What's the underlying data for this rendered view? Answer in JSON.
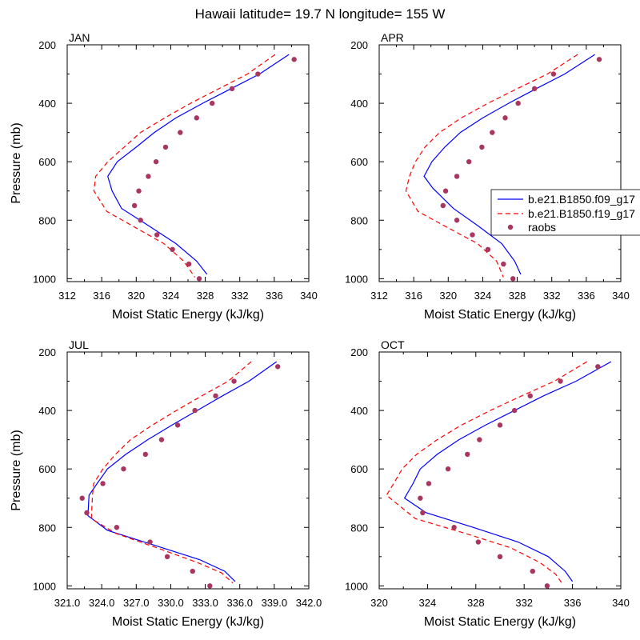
{
  "figure_title": "Hawaii  latitude= 19.7 N longitude= 155 W",
  "legend": {
    "entries": [
      {
        "label": "b.e21.B1850.f09_g17",
        "style": "solid",
        "color": "#0000ff"
      },
      {
        "label": "b.e21.B1850.f19_g17",
        "style": "dashed",
        "color": "#ff0000"
      },
      {
        "label": "raobs",
        "style": "marker",
        "color": "#a93661"
      }
    ]
  },
  "colors": {
    "f09": "#0000ff",
    "f19": "#ff0000",
    "raobs": "#a93661"
  },
  "chart_data": [
    {
      "type": "line",
      "panel": "JAN",
      "xlabel": "Moist Static Energy (kJ/kg)",
      "ylabel": "Pressure (mb)",
      "xlim": [
        312,
        340
      ],
      "ylim": [
        200,
        1010
      ],
      "y_inverted": true,
      "xticks": [
        312,
        316,
        320,
        324,
        328,
        332,
        336,
        340
      ],
      "xtick_labels": [
        "312",
        "316",
        "320",
        "324",
        "328",
        "332",
        "336",
        "340"
      ],
      "yticks": [
        200,
        400,
        600,
        800,
        1000
      ],
      "ytick_labels": [
        "200",
        "400",
        "600",
        "800",
        "1000"
      ],
      "series": [
        {
          "name": "b.e21.B1850.f09_g17",
          "key": "f09",
          "x": [
            337.7,
            334.3,
            331.0,
            327.7,
            324.6,
            322.1,
            320.0,
            317.8,
            316.7,
            317.2,
            318.3,
            321.5,
            324.6,
            327.0,
            328.2
          ],
          "y": [
            233,
            300,
            350,
            400,
            450,
            500,
            550,
            600,
            650,
            700,
            760,
            820,
            880,
            940,
            985
          ]
        },
        {
          "name": "b.e21.B1850.f19_g17",
          "key": "f19",
          "x": [
            336.1,
            332.9,
            329.6,
            326.3,
            323.3,
            320.5,
            318.6,
            316.7,
            315.3,
            315.1,
            316.6,
            319.6,
            323.2,
            325.5,
            326.8
          ],
          "y": [
            233,
            300,
            350,
            400,
            450,
            500,
            550,
            600,
            650,
            700,
            770,
            820,
            880,
            940,
            995
          ]
        },
        {
          "name": "raobs",
          "key": "raobs",
          "x": [
            338.3,
            334.1,
            331.1,
            328.8,
            327.0,
            325.1,
            323.4,
            322.3,
            321.4,
            320.3,
            319.8,
            320.5,
            322.4,
            324.2,
            326.1,
            327.3
          ],
          "y": [
            250,
            300,
            350,
            400,
            450,
            500,
            550,
            600,
            650,
            700,
            750,
            800,
            850,
            900,
            950,
            1000
          ]
        }
      ]
    },
    {
      "type": "line",
      "panel": "APR",
      "xlabel": "Moist Static Energy (kJ/kg)",
      "ylabel": "",
      "xlim": [
        312,
        340
      ],
      "ylim": [
        200,
        1010
      ],
      "y_inverted": true,
      "xticks": [
        312,
        316,
        320,
        324,
        328,
        332,
        336,
        340
      ],
      "xtick_labels": [
        "312",
        "316",
        "320",
        "324",
        "328",
        "332",
        "336",
        "340"
      ],
      "yticks": [
        200,
        400,
        600,
        800,
        1000
      ],
      "ytick_labels": [
        "200",
        "400",
        "600",
        "800",
        "1000"
      ],
      "series": [
        {
          "name": "b.e21.B1850.f09_g17",
          "key": "f09",
          "x": [
            337.0,
            333.5,
            330.2,
            327.0,
            324.0,
            321.4,
            319.6,
            318.1,
            317.2,
            318.2,
            320.6,
            323.5,
            326.2,
            327.7,
            328.4
          ],
          "y": [
            233,
            300,
            350,
            400,
            450,
            500,
            550,
            600,
            650,
            690,
            760,
            820,
            880,
            940,
            985
          ]
        },
        {
          "name": "b.e21.B1850.f19_g17",
          "key": "f19",
          "x": [
            335.0,
            331.5,
            328.0,
            324.6,
            321.5,
            319.0,
            317.3,
            316.2,
            315.5,
            315.1,
            316.5,
            319.6,
            323.4,
            325.6,
            326.4
          ],
          "y": [
            233,
            300,
            350,
            400,
            450,
            500,
            550,
            600,
            650,
            700,
            770,
            820,
            880,
            940,
            995
          ]
        },
        {
          "name": "raobs",
          "key": "raobs",
          "x": [
            337.5,
            332.2,
            330.0,
            328.1,
            326.6,
            325.1,
            323.9,
            322.4,
            321.0,
            319.7,
            319.4,
            321.0,
            322.8,
            324.6,
            326.4,
            327.5
          ],
          "y": [
            250,
            300,
            350,
            400,
            450,
            500,
            550,
            600,
            650,
            700,
            750,
            800,
            850,
            900,
            950,
            1000
          ]
        }
      ]
    },
    {
      "type": "line",
      "panel": "JUL",
      "xlabel": "Moist Static Energy (kJ/kg)",
      "ylabel": "Pressure (mb)",
      "xlim": [
        321,
        342
      ],
      "ylim": [
        200,
        1010
      ],
      "y_inverted": true,
      "xticks": [
        321,
        324,
        327,
        330,
        333,
        336,
        339,
        342
      ],
      "xtick_labels": [
        "321.0",
        "324.0",
        "327.0",
        "330.0",
        "333.0",
        "336.0",
        "339.0",
        "342.0"
      ],
      "yticks": [
        200,
        400,
        600,
        800,
        1000
      ],
      "ytick_labels": [
        "200",
        "400",
        "600",
        "800",
        "1000"
      ],
      "series": [
        {
          "name": "b.e21.B1850.f09_g17",
          "key": "f09",
          "x": [
            339.2,
            336.8,
            334.5,
            332.3,
            330.1,
            328.0,
            326.1,
            324.5,
            323.6,
            322.9,
            322.8,
            324.5,
            328.5,
            332.5,
            334.7,
            335.6
          ],
          "y": [
            233,
            300,
            350,
            400,
            450,
            500,
            550,
            600,
            650,
            690,
            760,
            810,
            860,
            910,
            950,
            985
          ]
        },
        {
          "name": "b.e21.B1850.f19_g17",
          "key": "f19",
          "x": [
            337.0,
            335.0,
            332.7,
            330.5,
            328.4,
            326.5,
            325.2,
            324.1,
            323.3,
            323.2,
            323.1,
            325.2,
            328.8,
            332.3,
            334.4,
            335.4
          ],
          "y": [
            233,
            300,
            350,
            400,
            450,
            500,
            550,
            600,
            650,
            690,
            770,
            820,
            870,
            920,
            955,
            990
          ]
        },
        {
          "name": "raobs",
          "key": "raobs",
          "x": [
            339.3,
            335.5,
            333.9,
            332.1,
            330.6,
            329.2,
            327.8,
            325.9,
            324.1,
            322.3,
            322.7,
            325.3,
            328.2,
            329.7,
            331.9,
            333.4
          ],
          "y": [
            250,
            300,
            350,
            400,
            450,
            500,
            550,
            600,
            650,
            700,
            750,
            800,
            850,
            900,
            950,
            1000
          ]
        }
      ]
    },
    {
      "type": "line",
      "panel": "OCT",
      "xlabel": "Moist Static Energy (kJ/kg)",
      "ylabel": "",
      "xlim": [
        320,
        340
      ],
      "ylim": [
        200,
        1010
      ],
      "y_inverted": true,
      "xticks": [
        320,
        324,
        328,
        332,
        336,
        340
      ],
      "xtick_labels": [
        "320",
        "324",
        "328",
        "332",
        "336",
        "340"
      ],
      "yticks": [
        200,
        400,
        600,
        800,
        1000
      ],
      "ytick_labels": [
        "200",
        "400",
        "600",
        "800",
        "1000"
      ],
      "series": [
        {
          "name": "b.e21.B1850.f09_g17",
          "key": "f09",
          "x": [
            339.2,
            336.3,
            333.6,
            331.2,
            328.8,
            326.6,
            324.8,
            323.4,
            322.8,
            322.1,
            323.9,
            327.8,
            331.5,
            334.0,
            335.4,
            336.0
          ],
          "y": [
            233,
            300,
            350,
            400,
            450,
            500,
            550,
            600,
            650,
            700,
            750,
            800,
            850,
            900,
            950,
            985
          ]
        },
        {
          "name": "b.e21.B1850.f19_g17",
          "key": "f19",
          "x": [
            337.2,
            334.5,
            331.8,
            329.2,
            326.8,
            324.8,
            323.1,
            321.9,
            321.2,
            320.6,
            323.0,
            327.1,
            330.9,
            333.3,
            334.6,
            335.2
          ],
          "y": [
            233,
            300,
            350,
            400,
            450,
            500,
            550,
            600,
            650,
            690,
            770,
            820,
            870,
            920,
            960,
            995
          ]
        },
        {
          "name": "raobs",
          "key": "raobs",
          "x": [
            338.1,
            335.0,
            332.5,
            331.2,
            330.0,
            328.3,
            327.3,
            325.7,
            324.1,
            323.4,
            323.6,
            326.2,
            328.2,
            330.0,
            332.7,
            333.9
          ],
          "y": [
            250,
            300,
            350,
            400,
            450,
            500,
            550,
            600,
            650,
            700,
            750,
            800,
            850,
            900,
            950,
            1000
          ]
        }
      ]
    }
  ]
}
